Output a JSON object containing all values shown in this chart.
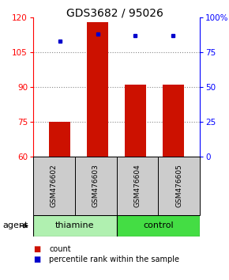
{
  "title": "GDS3682 / 95026",
  "samples": [
    "GSM476602",
    "GSM476603",
    "GSM476604",
    "GSM476605"
  ],
  "agent_groups": [
    {
      "label": "thiamine",
      "color": "#b0f0b0"
    },
    {
      "label": "control",
      "color": "#44dd44"
    }
  ],
  "bar_bottom": 60,
  "count_values": [
    75,
    118,
    91,
    91
  ],
  "percentile_values": [
    83,
    88,
    87,
    87
  ],
  "ylim_left": [
    60,
    120
  ],
  "yticks_left": [
    60,
    75,
    90,
    105,
    120
  ],
  "yticks_right_pct": [
    0,
    25,
    50,
    75,
    100
  ],
  "bar_color": "#cc1100",
  "dot_color": "#0000cc",
  "grid_color": "#888888",
  "sample_bg": "#cccccc",
  "bar_width": 0.55,
  "legend_labels": [
    "count",
    "percentile rank within the sample"
  ]
}
